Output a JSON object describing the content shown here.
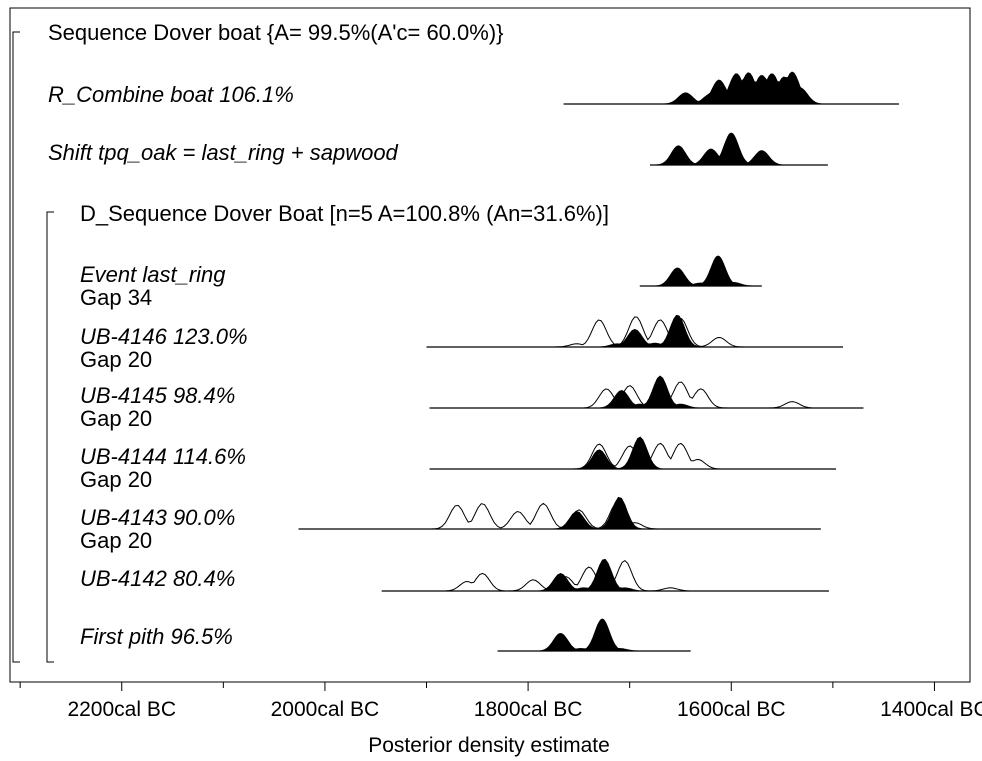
{
  "chart_data": {
    "type": "ridgeline",
    "title": "",
    "xlabel": "Posterior density estimate",
    "x_unit": "cal BC",
    "xlim": [
      2310,
      1365
    ],
    "x_ticks": [
      {
        "value": 2200,
        "label": "2200cal BC"
      },
      {
        "value": 2000,
        "label": "2000cal BC"
      },
      {
        "value": 1800,
        "label": "1800cal BC"
      },
      {
        "value": 1600,
        "label": "1600cal BC"
      },
      {
        "value": 1400,
        "label": "1400cal BC"
      }
    ],
    "sequence_label": "Sequence Dover boat {A= 99.5%(A'c= 60.0%)}",
    "subsequence_label": "D_Sequence Dover Boat [n=5 A=100.8% (An=31.6%)]",
    "rows": [
      {
        "label": "R_Combine boat  106.1%",
        "italic": true,
        "indent": 0,
        "gap": "",
        "range": [
          1765,
          1435
        ],
        "prior": [],
        "posterior": [
          [
            1645,
            0.35
          ],
          [
            1620,
            0.32
          ],
          [
            1612,
            0.75
          ],
          [
            1595,
            0.95
          ],
          [
            1583,
            0.98
          ],
          [
            1570,
            0.9
          ],
          [
            1560,
            0.95
          ],
          [
            1548,
            0.85
          ],
          [
            1540,
            1.0
          ],
          [
            1532,
            0.5
          ]
        ]
      },
      {
        "label": "Shift tpq_oak = last_ring + sapwood",
        "italic": true,
        "indent": 0,
        "gap": "",
        "range": [
          1680,
          1505
        ],
        "prior": [],
        "posterior": [
          [
            1652,
            0.6
          ],
          [
            1620,
            0.5
          ],
          [
            1600,
            1.0
          ],
          [
            1570,
            0.45
          ]
        ]
      },
      {
        "label": "Event last_ring",
        "italic": true,
        "indent": 1,
        "gap": "Gap 34",
        "range": [
          1690,
          1570
        ],
        "prior": [],
        "posterior": [
          [
            1653,
            0.6
          ],
          [
            1613,
            1.0
          ],
          [
            1630,
            0.1
          ],
          [
            1598,
            0.12
          ]
        ]
      },
      {
        "label": "UB-4146  123.0%",
        "italic": true,
        "indent": 1,
        "gap": "Gap 20",
        "range": [
          1900,
          1490
        ],
        "prior": [
          [
            1730,
            0.85
          ],
          [
            1694,
            0.95
          ],
          [
            1670,
            0.85
          ],
          [
            1650,
            0.9
          ],
          [
            1612,
            0.3
          ],
          [
            1752,
            0.1
          ]
        ],
        "posterior": [
          [
            1695,
            0.55
          ],
          [
            1653,
            1.0
          ],
          [
            1675,
            0.12
          ],
          [
            1712,
            0.1
          ]
        ]
      },
      {
        "label": "UB-4145   98.4%",
        "italic": true,
        "indent": 1,
        "gap": "Gap 20",
        "range": [
          1897,
          1470
        ],
        "prior": [
          [
            1723,
            0.6
          ],
          [
            1700,
            0.7
          ],
          [
            1670,
            0.75
          ],
          [
            1650,
            0.82
          ],
          [
            1630,
            0.6
          ],
          [
            1540,
            0.2
          ]
        ],
        "posterior": [
          [
            1708,
            0.55
          ],
          [
            1670,
            1.0
          ],
          [
            1690,
            0.12
          ],
          [
            1650,
            0.12
          ]
        ]
      },
      {
        "label": "UB-4144  114.6%",
        "italic": true,
        "indent": 1,
        "gap": "Gap 20",
        "range": [
          1897,
          1497
        ],
        "prior": [
          [
            1730,
            0.78
          ],
          [
            1700,
            0.72
          ],
          [
            1670,
            0.8
          ],
          [
            1650,
            0.8
          ],
          [
            1633,
            0.3
          ]
        ],
        "posterior": [
          [
            1730,
            0.6
          ],
          [
            1690,
            1.0
          ]
        ]
      },
      {
        "label": "UB-4143   90.0%",
        "italic": true,
        "indent": 1,
        "gap": "Gap 20",
        "range": [
          2026,
          1512
        ],
        "prior": [
          [
            1870,
            0.75
          ],
          [
            1845,
            0.8
          ],
          [
            1810,
            0.55
          ],
          [
            1785,
            0.8
          ],
          [
            1750,
            0.6
          ],
          [
            1712,
            0.85
          ],
          [
            1695,
            0.2
          ]
        ],
        "posterior": [
          [
            1752,
            0.55
          ],
          [
            1710,
            1.0
          ]
        ]
      },
      {
        "label": "UB-4142   80.4%",
        "italic": true,
        "indent": 1,
        "gap": "",
        "range": [
          1944,
          1504
        ],
        "prior": [
          [
            1860,
            0.3
          ],
          [
            1845,
            0.55
          ],
          [
            1795,
            0.35
          ],
          [
            1763,
            0.45
          ],
          [
            1740,
            0.75
          ],
          [
            1705,
            0.95
          ],
          [
            1660,
            0.1
          ]
        ],
        "posterior": [
          [
            1768,
            0.55
          ],
          [
            1725,
            1.0
          ],
          [
            1745,
            0.1
          ],
          [
            1705,
            0.1
          ]
        ]
      },
      {
        "label": "First pith   96.5%",
        "italic": true,
        "indent": 1,
        "gap": "",
        "range": [
          1830,
          1640
        ],
        "prior": [],
        "posterior": [
          [
            1768,
            0.55
          ],
          [
            1727,
            1.0
          ],
          [
            1748,
            0.08
          ],
          [
            1710,
            0.08
          ]
        ]
      }
    ]
  }
}
